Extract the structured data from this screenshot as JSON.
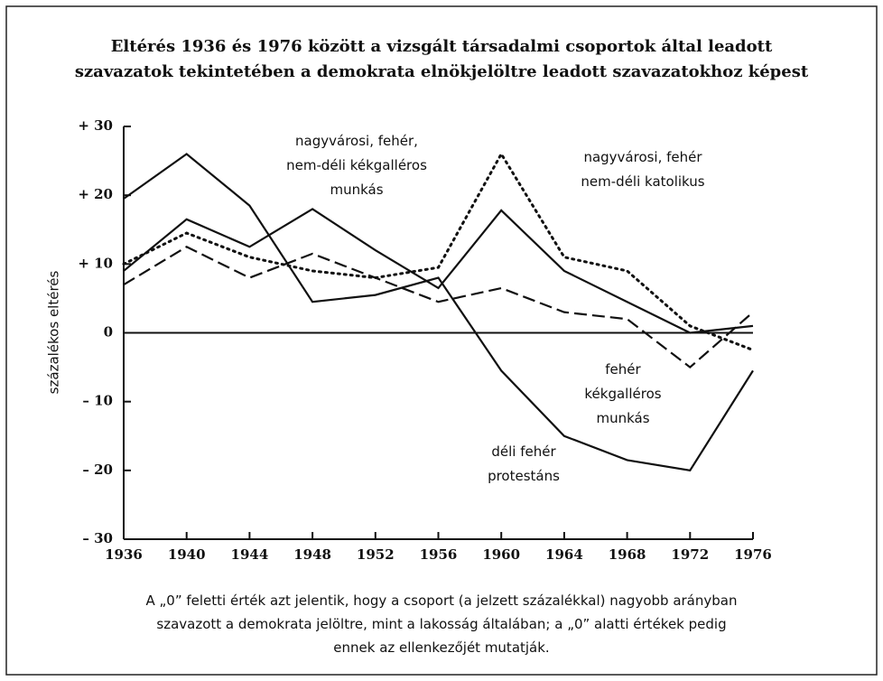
{
  "chart_data": {
    "type": "line",
    "title": "Eltérés 1936 és 1976 között a vizsgált társadalmi csoportok által leadott szavazatok tekintetében a demokrata elnökjelöltre leadott szavazatokhoz képest",
    "y_label": "százalékos eltérés",
    "note": "A „0” feletti érték azt jelentik, hogy a csoport (a jelzett százalékkal) nagyobb arányban szavazott a demokrata jelöltre, mint a lakosság általában; a „0” alatti értékek pedig ennek az ellenkezőjét mutatják.",
    "x": [
      1936,
      1940,
      1944,
      1948,
      1952,
      1956,
      1960,
      1964,
      1968,
      1972,
      1976
    ],
    "xlim": [
      1936,
      1976
    ],
    "xticks": [
      1936,
      1940,
      1944,
      1948,
      1952,
      1956,
      1960,
      1964,
      1968,
      1972,
      1976
    ],
    "ylim": [
      -30,
      30
    ],
    "yticks": [
      {
        "value": -30,
        "label": "– 30"
      },
      {
        "value": -20,
        "label": "– 20"
      },
      {
        "value": -10,
        "label": "– 10"
      },
      0,
      {
        "value": 10,
        "label": "+ 10"
      },
      {
        "value": 20,
        "label": "+ 20"
      },
      {
        "value": 30,
        "label": "+ 30"
      }
    ],
    "series": [
      {
        "name": "déli fehér protestáns",
        "color": "#111111",
        "style": "solid",
        "values": [
          19.5,
          26,
          18.5,
          4.5,
          5.5,
          8,
          -5.5,
          -15,
          -18.5,
          -20,
          -5.5
        ]
      },
      {
        "name": "nagyvárosi, fehér, nem-déli kékgalléros munkás",
        "color": "#111111",
        "style": "solid",
        "values": [
          9,
          16.5,
          12.5,
          18,
          12,
          6.5,
          17.8,
          9,
          4.5,
          0,
          1
        ]
      },
      {
        "name": "nagyvárosi, fehér nem-déli katolikus",
        "color": "#111111",
        "style": "dotted",
        "values": [
          10,
          14.5,
          11,
          9,
          8,
          9.5,
          26,
          11,
          9,
          1,
          -2.5
        ]
      },
      {
        "name": "fehér kékgalléros munkás",
        "color": "#111111",
        "style": "dashed",
        "values": [
          7,
          12.5,
          8,
          11.5,
          8,
          4.5,
          6.5,
          3,
          2,
          -5,
          3
        ]
      }
    ]
  }
}
